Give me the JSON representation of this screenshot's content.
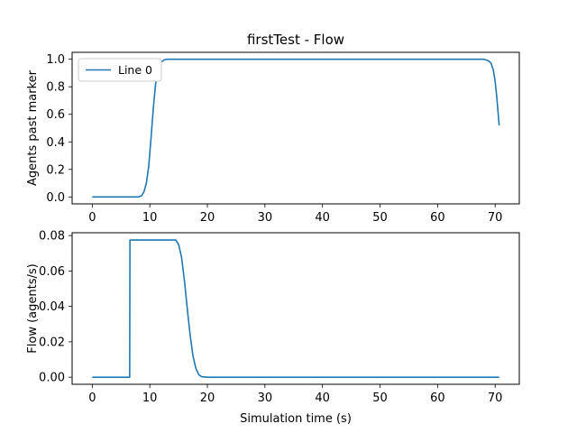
{
  "chart_data": [
    {
      "type": "line",
      "title": "firstTest - Flow",
      "xlabel": "",
      "ylabel": "Agents past marker",
      "xlim": [
        -3.5,
        74.2
      ],
      "ylim": [
        -0.05,
        1.05
      ],
      "xticks": [
        0,
        10,
        20,
        30,
        40,
        50,
        60,
        70
      ],
      "yticks": [
        0.0,
        0.2,
        0.4,
        0.6,
        0.8,
        1.0
      ],
      "ytick_labels": [
        "0.0",
        "0.2",
        "0.4",
        "0.6",
        "0.8",
        "1.0"
      ],
      "grid": false,
      "legend": {
        "placement": "upper-left",
        "entries": [
          "Line 0"
        ]
      },
      "series": [
        {
          "name": "Line 0",
          "color": "#1f77b4",
          "x": [
            0,
            8.0,
            8.6,
            9.0,
            9.4,
            9.8,
            10.2,
            10.6,
            11.0,
            11.5,
            12.0,
            12.5,
            13.0,
            14.0,
            20,
            30,
            40,
            50,
            60,
            66,
            68,
            68.8,
            69.3,
            69.7,
            70.0,
            70.3,
            70.5,
            70.7
          ],
          "y": [
            0.0,
            0.0,
            0.01,
            0.04,
            0.1,
            0.22,
            0.42,
            0.64,
            0.82,
            0.93,
            0.98,
            0.995,
            1.0,
            1.0,
            1.0,
            1.0,
            1.0,
            1.0,
            1.0,
            1.0,
            1.0,
            0.99,
            0.97,
            0.92,
            0.84,
            0.72,
            0.62,
            0.52
          ]
        }
      ]
    },
    {
      "type": "line",
      "title": "",
      "xlabel": "Simulation time (s)",
      "ylabel": "Flow (agents/s)",
      "xlim": [
        -3.5,
        74.2
      ],
      "ylim": [
        -0.004,
        0.0816
      ],
      "xticks": [
        0,
        10,
        20,
        30,
        40,
        50,
        60,
        70
      ],
      "yticks": [
        0.0,
        0.02,
        0.04,
        0.06,
        0.08
      ],
      "ytick_labels": [
        "0.00",
        "0.02",
        "0.04",
        "0.06",
        "0.08"
      ],
      "grid": false,
      "series": [
        {
          "color": "#1f77b4",
          "x": [
            0,
            6.5,
            6.55,
            10,
            14.5,
            15.0,
            15.5,
            16.0,
            16.5,
            17.0,
            17.5,
            18.0,
            18.5,
            19.0,
            20.0,
            30,
            40,
            50,
            60,
            70.7
          ],
          "y": [
            0.0,
            0.0,
            0.0775,
            0.0775,
            0.0775,
            0.075,
            0.068,
            0.055,
            0.039,
            0.024,
            0.012,
            0.005,
            0.0015,
            0.0003,
            0.0,
            0.0,
            0.0,
            0.0,
            0.0,
            0.0
          ]
        }
      ]
    }
  ]
}
